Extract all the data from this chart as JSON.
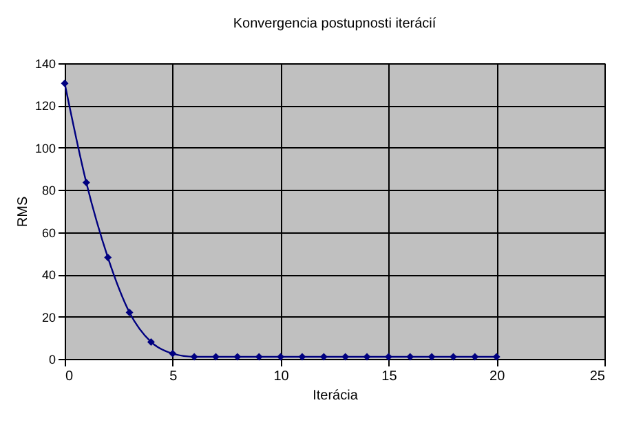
{
  "chart_data": {
    "type": "line",
    "title": "Konvergencia postupnosti iterácií",
    "xlabel": "Iterácia",
    "ylabel": "RMS",
    "x": [
      0,
      1,
      2,
      3,
      4,
      5,
      6,
      7,
      8,
      9,
      10,
      11,
      12,
      13,
      14,
      15,
      16,
      17,
      18,
      19,
      20
    ],
    "series": [
      {
        "color": "#000080",
        "values": [
          130.5,
          83.5,
          48,
          22,
          8,
          2.5,
          1,
          1,
          1,
          1,
          1,
          1,
          1,
          1,
          1,
          1,
          1,
          1,
          1,
          1,
          1
        ]
      }
    ],
    "xlim": [
      0,
      25
    ],
    "xticks": [
      0,
      5,
      10,
      15,
      20,
      25
    ],
    "ylim": [
      0,
      140
    ],
    "yticks": [
      0,
      20,
      40,
      60,
      80,
      100,
      120,
      140
    ],
    "grid": true,
    "marker": "diamond",
    "line_style": "solid"
  }
}
